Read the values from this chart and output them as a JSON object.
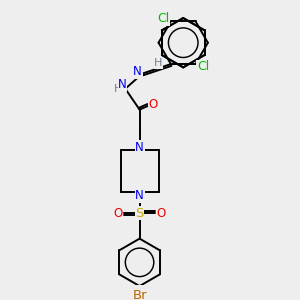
{
  "bg_color": "#eeeeee",
  "atom_colors": {
    "C": "#000000",
    "H": "#708090",
    "N": "#0000ee",
    "O": "#ee0000",
    "S": "#ccaa00",
    "Cl": "#00bb00",
    "Br": "#bb6600"
  },
  "bond_color": "#000000",
  "line_width": 1.4,
  "font_size": 8.5
}
